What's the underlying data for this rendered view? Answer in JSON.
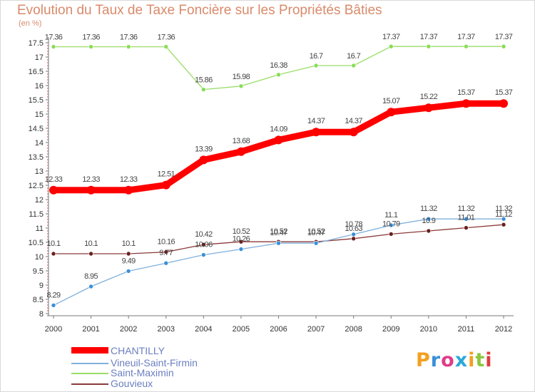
{
  "title": "Evolution du Taux de Taxe Foncière sur les Propriétés Bâties",
  "unit_label": "(en %)",
  "logo_text": "Proxiti",
  "chart_data": {
    "type": "line",
    "x": [
      "2000",
      "2001",
      "2002",
      "2003",
      "2004",
      "2005",
      "2006",
      "2007",
      "2008",
      "2009",
      "2010",
      "2011",
      "2012"
    ],
    "ylim": [
      8,
      17.5
    ],
    "yticks": [
      "8",
      "8.5",
      "9",
      "9.5",
      "10",
      "10.5",
      "11",
      "11.5",
      "12",
      "12.5",
      "13",
      "13.5",
      "14",
      "14.5",
      "15",
      "15.5",
      "16",
      "16.5",
      "17",
      "17.5"
    ],
    "grid": false,
    "legend_position": "bottom-left",
    "series": [
      {
        "name": "CHANTILLY",
        "color": "#ff0000",
        "values": [
          12.33,
          12.33,
          12.33,
          12.51,
          13.39,
          13.68,
          14.09,
          14.37,
          14.37,
          15.07,
          15.22,
          15.37,
          15.37
        ],
        "labels": [
          "12.33",
          "12.33",
          "12.33",
          "12.51",
          "13.39",
          "13.68",
          "14.09",
          "14.37",
          "14.37",
          "15.07",
          "15.22",
          "15.37",
          "15.37"
        ]
      },
      {
        "name": "Vineuil-Saint-Firmin",
        "color": "#7fb0dc",
        "values": [
          8.29,
          8.95,
          9.49,
          9.77,
          10.06,
          10.26,
          10.47,
          10.47,
          10.78,
          11.1,
          11.32,
          11.32,
          11.32
        ],
        "labels": [
          "8.29",
          "8.95",
          "9.49",
          "9.77",
          "10.06",
          "10.26",
          "10.47",
          "10.47",
          "10.78",
          "11.1",
          "11.32",
          "11.32",
          "11.32"
        ]
      },
      {
        "name": "Saint-Maximin",
        "color": "#99dd66",
        "values": [
          17.36,
          17.36,
          17.36,
          17.36,
          15.86,
          15.98,
          16.38,
          16.7,
          16.7,
          17.37,
          17.37,
          17.37,
          17.37
        ],
        "labels": [
          "17.36",
          "17.36",
          "17.36",
          "17.36",
          "15.86",
          "15.98",
          "16.38",
          "16.7",
          "16.7",
          "17.37",
          "17.37",
          "17.37",
          "17.37"
        ]
      },
      {
        "name": "Gouvieux",
        "color": "#8b3a3a",
        "values": [
          10.1,
          10.1,
          10.1,
          10.16,
          10.42,
          10.52,
          10.52,
          10.52,
          10.63,
          10.79,
          10.9,
          11.01,
          11.12
        ],
        "labels": [
          "10.1",
          "10.1",
          "10.1",
          "10.16",
          "10.42",
          "10.52",
          "10.52",
          "10.52",
          "10.63",
          "10.79",
          "10.9",
          "11.01",
          "11.12"
        ]
      }
    ]
  }
}
